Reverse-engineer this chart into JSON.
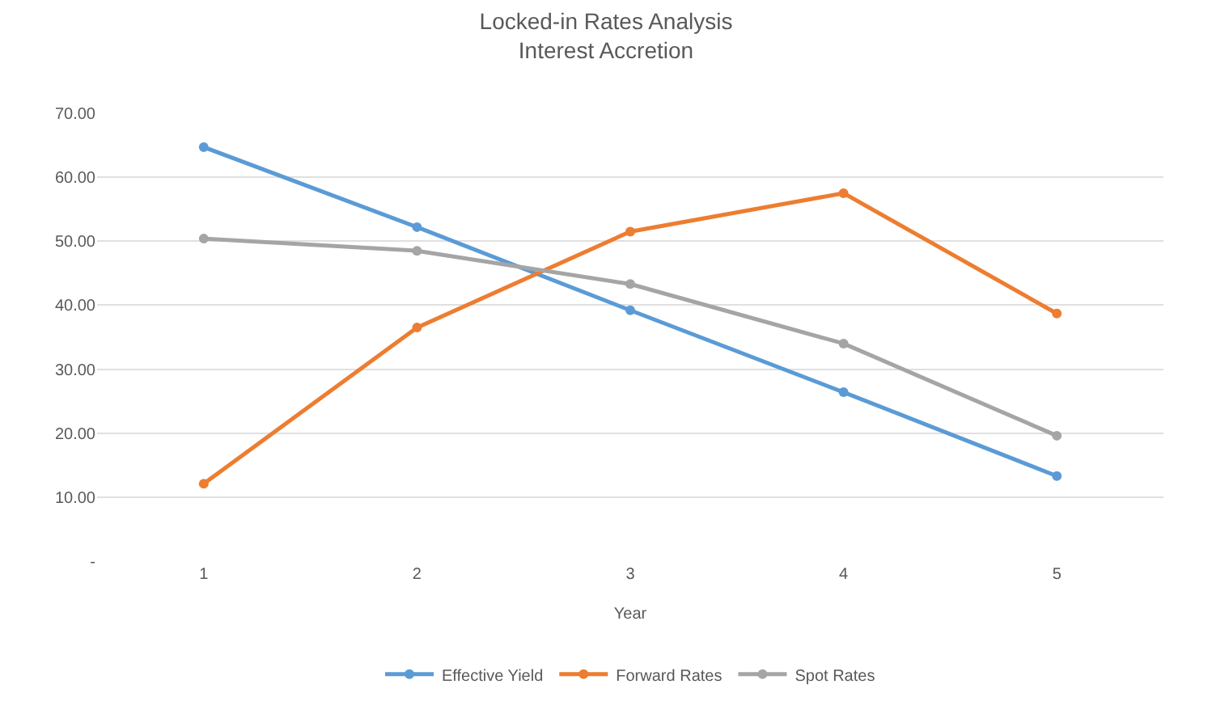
{
  "chart_data": {
    "type": "line",
    "title": "Locked-in Rates Analysis",
    "subtitle": "Interest Accretion",
    "xlabel": "Year",
    "categories": [
      "1",
      "2",
      "3",
      "4",
      "5"
    ],
    "series": [
      {
        "name": "Effective Yield",
        "color": "#5b9bd5",
        "values": [
          64.7,
          52.2,
          39.2,
          26.4,
          13.3
        ]
      },
      {
        "name": "Forward Rates",
        "color": "#ed7d31",
        "values": [
          12.1,
          36.5,
          51.5,
          57.5,
          38.7
        ]
      },
      {
        "name": "Spot Rates",
        "color": "#a5a5a5",
        "values": [
          50.4,
          48.5,
          43.3,
          34.0,
          19.6
        ]
      }
    ],
    "ylim": [
      0,
      70
    ],
    "yticks": [
      {
        "value": 0,
        "label": "-"
      },
      {
        "value": 10,
        "label": "10.00"
      },
      {
        "value": 20,
        "label": "20.00"
      },
      {
        "value": 30,
        "label": "30.00"
      },
      {
        "value": 40,
        "label": "40.00"
      },
      {
        "value": 50,
        "label": "50.00"
      },
      {
        "value": 60,
        "label": "60.00"
      },
      {
        "value": 70,
        "label": "70.00"
      }
    ],
    "grid": "y",
    "legend": "bottom",
    "marker": "circle",
    "line_style": "solid"
  }
}
